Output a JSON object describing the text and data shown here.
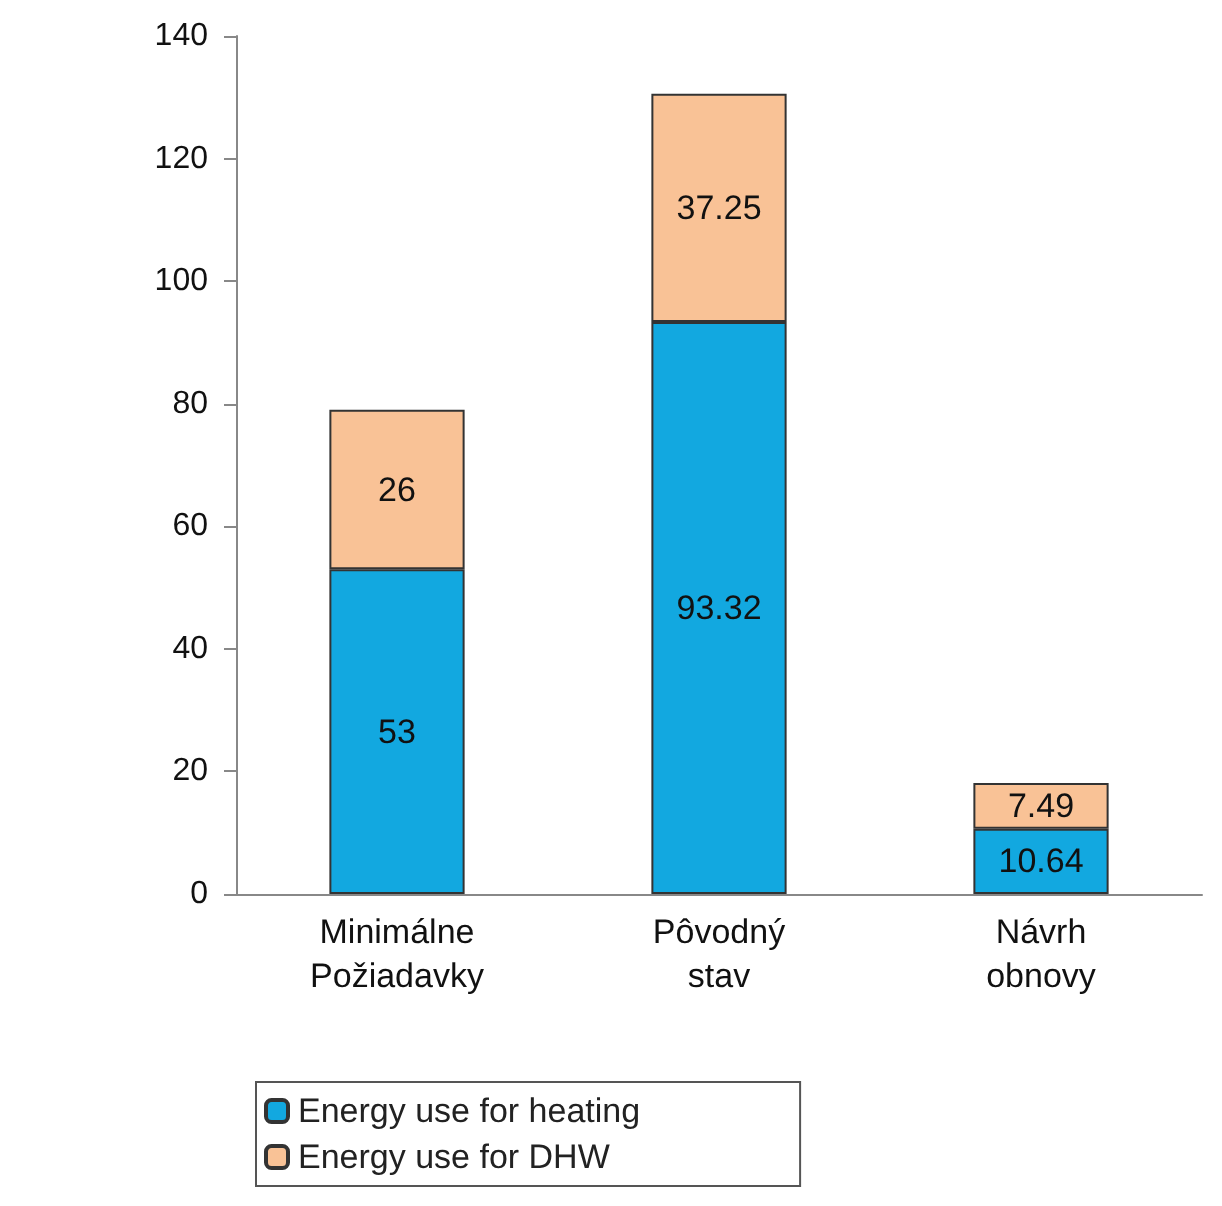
{
  "chart_data": {
    "type": "bar",
    "stacked": true,
    "categories": [
      "Minimálne\nPožiadavky",
      "Pôvodný\nstav",
      "Návrh\nobnovy"
    ],
    "series": [
      {
        "name": "Energy use for heating",
        "color": "#12a8e0",
        "values": [
          53,
          93.32,
          10.64
        ],
        "value_labels": [
          "53",
          "93.32",
          "10.64"
        ]
      },
      {
        "name": "Energy use for DHW",
        "color": "#f9c296",
        "values": [
          26,
          37.25,
          7.49
        ],
        "value_labels": [
          "26",
          "37.25",
          "7.49"
        ]
      }
    ],
    "ylim": [
      0,
      140
    ],
    "yticks": [
      0,
      20,
      40,
      60,
      80,
      100,
      120,
      140
    ],
    "grid": false,
    "legend": "bottom left"
  }
}
